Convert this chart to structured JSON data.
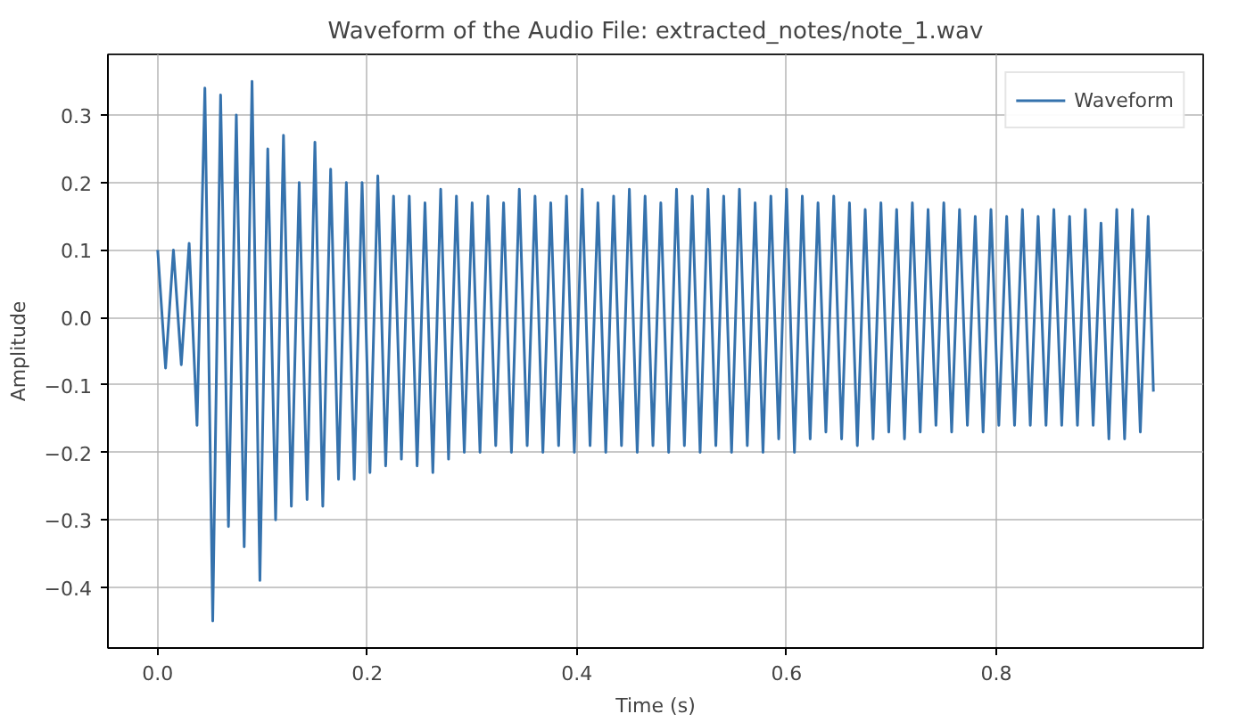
{
  "chart_data": {
    "type": "line",
    "title": "Waveform of the Audio File: extracted_notes/note_1.wav",
    "xlabel": "Time (s)",
    "ylabel": "Amplitude",
    "x": [
      0,
      0.0075,
      0.015,
      0.0225,
      0.03,
      0.0375,
      0.045,
      0.0525,
      0.06,
      0.0675,
      0.075,
      0.0825,
      0.09,
      0.0975,
      0.105,
      0.1125,
      0.12,
      0.1275,
      0.135,
      0.1425,
      0.15,
      0.1575,
      0.165,
      0.1725,
      0.18,
      0.1875,
      0.195,
      0.2025,
      0.21,
      0.2175,
      0.225,
      0.2325,
      0.24,
      0.2475,
      0.255,
      0.2625,
      0.27,
      0.2775,
      0.285,
      0.2925,
      0.3,
      0.3075,
      0.315,
      0.3225,
      0.33,
      0.3375,
      0.345,
      0.3525,
      0.36,
      0.3675,
      0.375,
      0.3825,
      0.39,
      0.3975,
      0.405,
      0.4125,
      0.42,
      0.4275,
      0.435,
      0.4425,
      0.45,
      0.4575,
      0.465,
      0.4725,
      0.48,
      0.4875,
      0.495,
      0.5025,
      0.51,
      0.5175,
      0.525,
      0.5325,
      0.54,
      0.5475,
      0.555,
      0.5625,
      0.57,
      0.5775,
      0.585,
      0.5925,
      0.6,
      0.6075,
      0.615,
      0.6225,
      0.63,
      0.6375,
      0.645,
      0.6525,
      0.66,
      0.6675,
      0.675,
      0.6825,
      0.69,
      0.6975,
      0.705,
      0.7125,
      0.72,
      0.7275,
      0.735,
      0.7425,
      0.75,
      0.7575,
      0.765,
      0.7725,
      0.78,
      0.7875,
      0.795,
      0.8025,
      0.81,
      0.8175,
      0.825,
      0.8325,
      0.84,
      0.8475,
      0.855,
      0.8625,
      0.87,
      0.8775,
      0.885,
      0.8925,
      0.9,
      0.9075,
      0.915,
      0.9225,
      0.93,
      0.9375,
      0.945,
      0.95
    ],
    "series": [
      {
        "name": "Waveform",
        "color": "#3572ad",
        "values": [
          0.1,
          -0.075,
          0.1,
          -0.07,
          0.11,
          -0.16,
          0.34,
          -0.45,
          0.33,
          -0.31,
          0.3,
          -0.34,
          0.35,
          -0.39,
          0.25,
          -0.3,
          0.27,
          -0.28,
          0.2,
          -0.27,
          0.26,
          -0.28,
          0.22,
          -0.24,
          0.2,
          -0.24,
          0.2,
          -0.23,
          0.21,
          -0.22,
          0.18,
          -0.21,
          0.18,
          -0.22,
          0.17,
          -0.23,
          0.19,
          -0.21,
          0.18,
          -0.2,
          0.17,
          -0.2,
          0.18,
          -0.19,
          0.17,
          -0.2,
          0.19,
          -0.19,
          0.18,
          -0.2,
          0.17,
          -0.19,
          0.18,
          -0.2,
          0.19,
          -0.19,
          0.17,
          -0.2,
          0.18,
          -0.19,
          0.19,
          -0.2,
          0.18,
          -0.19,
          0.17,
          -0.2,
          0.19,
          -0.19,
          0.18,
          -0.2,
          0.19,
          -0.19,
          0.18,
          -0.2,
          0.19,
          -0.19,
          0.17,
          -0.2,
          0.18,
          -0.18,
          0.19,
          -0.2,
          0.18,
          -0.18,
          0.17,
          -0.17,
          0.18,
          -0.18,
          0.17,
          -0.19,
          0.16,
          -0.18,
          0.17,
          -0.17,
          0.16,
          -0.18,
          0.17,
          -0.17,
          0.16,
          -0.16,
          0.17,
          -0.17,
          0.16,
          -0.16,
          0.15,
          -0.17,
          0.16,
          -0.16,
          0.15,
          -0.16,
          0.16,
          -0.16,
          0.15,
          -0.16,
          0.16,
          -0.16,
          0.15,
          -0.16,
          0.16,
          -0.16,
          0.14,
          -0.18,
          0.16,
          -0.18,
          0.16,
          -0.17,
          0.15,
          -0.11
        ]
      }
    ],
    "xlim": [
      -0.0475,
      0.9975
    ],
    "ylim": [
      -0.49,
      0.39
    ],
    "xticks": [
      {
        "value": 0,
        "label": "0.0"
      },
      {
        "value": 0.2,
        "label": "0.2"
      },
      {
        "value": 0.4,
        "label": "0.4"
      },
      {
        "value": 0.6,
        "label": "0.6"
      },
      {
        "value": 0.8,
        "label": "0.8"
      }
    ],
    "yticks": [
      {
        "value": -0.4,
        "label": "−0.4"
      },
      {
        "value": -0.3,
        "label": "−0.3"
      },
      {
        "value": -0.2,
        "label": "−0.2"
      },
      {
        "value": -0.1,
        "label": "−0.1"
      },
      {
        "value": 0,
        "label": "0.0"
      },
      {
        "value": 0.1,
        "label": "0.1"
      },
      {
        "value": 0.2,
        "label": "0.2"
      },
      {
        "value": 0.3,
        "label": "0.3"
      }
    ],
    "grid": true,
    "legend": "top right",
    "marker": "none",
    "line_style": "solid"
  }
}
